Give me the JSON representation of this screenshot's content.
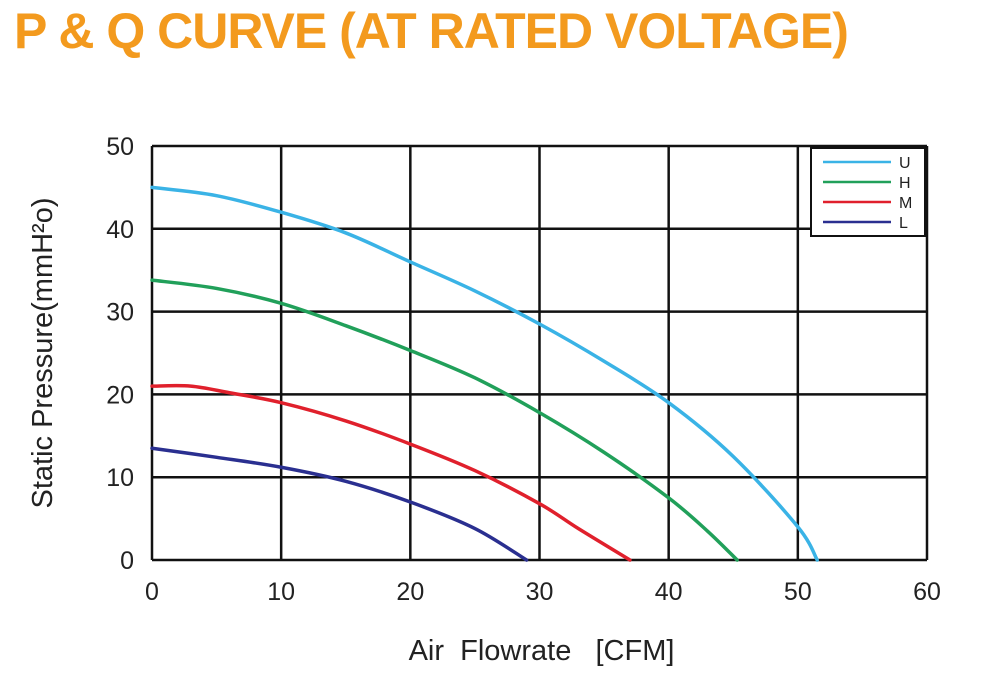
{
  "title": "P & Q CURVE (AT RATED VOLTAGE)",
  "colors": {
    "title": "#f39a1e",
    "grid": "#111111"
  },
  "chart_data": {
    "type": "line",
    "xlabel": "Air  Flowrate   [CFM]",
    "ylabel": "Static Pressure(mmH²o)",
    "xlim": [
      0,
      60
    ],
    "ylim": [
      0,
      50
    ],
    "xticks": [
      0,
      10,
      20,
      30,
      40,
      50,
      60
    ],
    "yticks": [
      0,
      10,
      20,
      30,
      40,
      50
    ],
    "grid": true,
    "legend_position": "top-right",
    "series": [
      {
        "name": "U",
        "color": "#3ab3e6",
        "points": [
          [
            0,
            45
          ],
          [
            5,
            44
          ],
          [
            10,
            42
          ],
          [
            15,
            39.5
          ],
          [
            20,
            36
          ],
          [
            25,
            32.5
          ],
          [
            30,
            28.5
          ],
          [
            35,
            24
          ],
          [
            40,
            19
          ],
          [
            45,
            12.5
          ],
          [
            50,
            4
          ],
          [
            51.5,
            0
          ]
        ]
      },
      {
        "name": "H",
        "color": "#21a05a",
        "points": [
          [
            0,
            33.8
          ],
          [
            5,
            32.8
          ],
          [
            10,
            31
          ],
          [
            15,
            28.3
          ],
          [
            20,
            25.3
          ],
          [
            25,
            22
          ],
          [
            30,
            17.8
          ],
          [
            35,
            13
          ],
          [
            40,
            7.5
          ],
          [
            43,
            3.5
          ],
          [
            45.3,
            0
          ]
        ]
      },
      {
        "name": "M",
        "color": "#e0202c",
        "points": [
          [
            0,
            21
          ],
          [
            3,
            21
          ],
          [
            6,
            20.2
          ],
          [
            10,
            19
          ],
          [
            15,
            16.8
          ],
          [
            20,
            14
          ],
          [
            25,
            10.8
          ],
          [
            30,
            6.8
          ],
          [
            33,
            3.8
          ],
          [
            37,
            0
          ]
        ]
      },
      {
        "name": "L",
        "color": "#2a2f90",
        "points": [
          [
            0,
            13.5
          ],
          [
            5,
            12.4
          ],
          [
            10,
            11.2
          ],
          [
            15,
            9.5
          ],
          [
            20,
            7
          ],
          [
            25,
            3.8
          ],
          [
            29,
            0
          ]
        ]
      }
    ]
  }
}
